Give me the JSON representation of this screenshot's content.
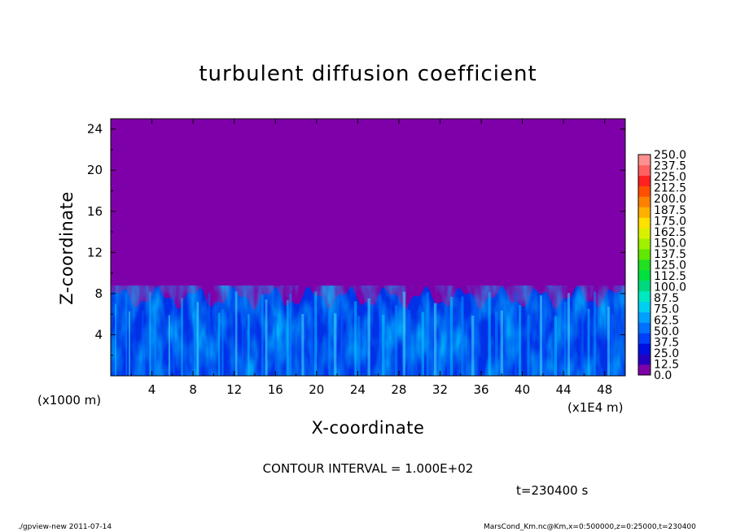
{
  "chart_data": {
    "type": "heatmap",
    "title": "turbulent diffusion coefficient",
    "xlabel": "X-coordinate",
    "ylabel": "Z-coordinate",
    "x_unit": "(x1E4 m)",
    "y_unit": "(x1000 m)",
    "xlim": [
      0,
      50
    ],
    "ylim": [
      0,
      25
    ],
    "x_ticks": [
      "4",
      "8",
      "12",
      "16",
      "20",
      "24",
      "28",
      "32",
      "36",
      "40",
      "44",
      "48"
    ],
    "y_ticks": [
      "4",
      "8",
      "12",
      "16",
      "20",
      "24"
    ],
    "boundary_layer_top": 8.5,
    "colorbar": {
      "labels": [
        "0.0",
        "12.5",
        "25.0",
        "37.5",
        "50.0",
        "62.5",
        "75.0",
        "87.5",
        "100.0",
        "112.5",
        "125.0",
        "137.5",
        "150.0",
        "162.5",
        "175.0",
        "187.5",
        "200.0",
        "212.5",
        "225.0",
        "237.5",
        "250.0"
      ],
      "colors": [
        "#7e00a8",
        "#2400c0",
        "#0010e0",
        "#0040f8",
        "#0070ff",
        "#00a0ff",
        "#00d0f0",
        "#00e8c0",
        "#00d880",
        "#00e040",
        "#20e020",
        "#60e800",
        "#a0f000",
        "#d8f000",
        "#ffe000",
        "#ffb000",
        "#ff8000",
        "#ff5000",
        "#ff2020",
        "#ff6060",
        "#ff9090"
      ]
    }
  },
  "text": {
    "contour_interval": "CONTOUR INTERVAL = 1.000E+02",
    "time": "t=230400 s",
    "footer_left": "./gpview-new   2011-07-14",
    "footer_right": "MarsCond_Km.nc@Km,x=0:500000,z=0:25000,t=230400"
  }
}
